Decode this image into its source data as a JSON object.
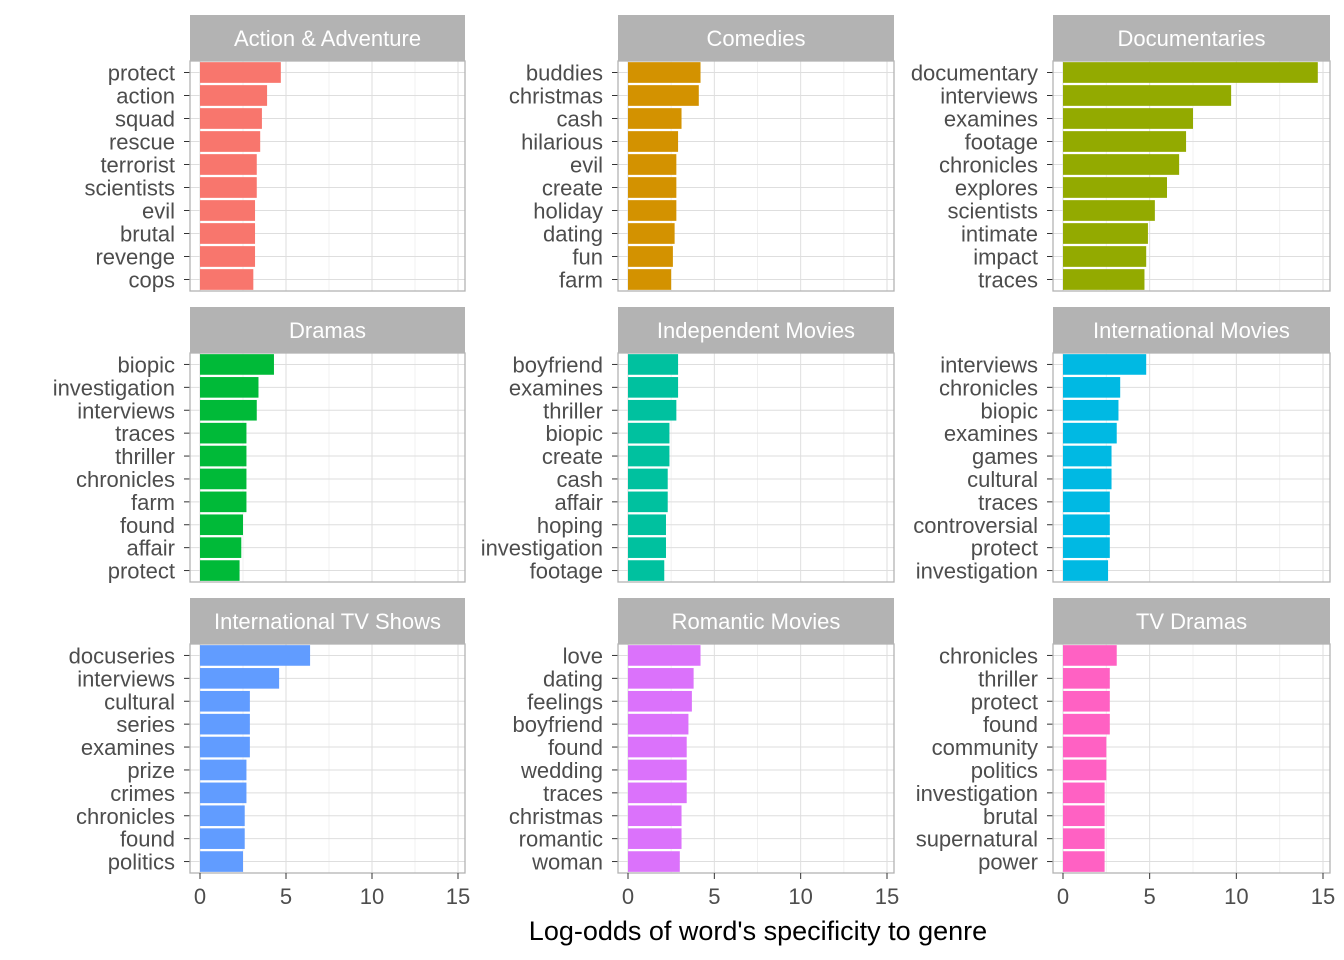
{
  "chart_data": {
    "type": "bar",
    "orientation": "horizontal",
    "xlabel": "Log-odds of word's specificity to genre",
    "xlim": [
      0,
      15
    ],
    "x_ticks": [
      0,
      5,
      10,
      15
    ],
    "grid": true,
    "legend": "none",
    "facets": [
      {
        "name": "Action & Adventure",
        "color": "#F8766D",
        "categories": [
          "protect",
          "action",
          "squad",
          "rescue",
          "terrorist",
          "scientists",
          "evil",
          "brutal",
          "revenge",
          "cops"
        ],
        "values": [
          4.7,
          3.9,
          3.6,
          3.5,
          3.3,
          3.3,
          3.2,
          3.2,
          3.2,
          3.1
        ]
      },
      {
        "name": "Comedies",
        "color": "#D39200",
        "categories": [
          "buddies",
          "christmas",
          "cash",
          "hilarious",
          "evil",
          "create",
          "holiday",
          "dating",
          "fun",
          "farm"
        ],
        "values": [
          4.2,
          4.1,
          3.1,
          2.9,
          2.8,
          2.8,
          2.8,
          2.7,
          2.6,
          2.5
        ]
      },
      {
        "name": "Documentaries",
        "color": "#93AA00",
        "categories": [
          "documentary",
          "interviews",
          "examines",
          "footage",
          "chronicles",
          "explores",
          "scientists",
          "intimate",
          "impact",
          "traces"
        ],
        "values": [
          14.7,
          9.7,
          7.5,
          7.1,
          6.7,
          6.0,
          5.3,
          4.9,
          4.8,
          4.7
        ]
      },
      {
        "name": "Dramas",
        "color": "#00BA38",
        "categories": [
          "biopic",
          "investigation",
          "interviews",
          "traces",
          "thriller",
          "chronicles",
          "farm",
          "found",
          "affair",
          "protect"
        ],
        "values": [
          4.3,
          3.4,
          3.3,
          2.7,
          2.7,
          2.7,
          2.7,
          2.5,
          2.4,
          2.3
        ]
      },
      {
        "name": "Independent Movies",
        "color": "#00C19F",
        "categories": [
          "boyfriend",
          "examines",
          "thriller",
          "biopic",
          "create",
          "cash",
          "affair",
          "hoping",
          "investigation",
          "footage"
        ],
        "values": [
          2.9,
          2.9,
          2.8,
          2.4,
          2.4,
          2.3,
          2.3,
          2.2,
          2.2,
          2.1
        ]
      },
      {
        "name": "International Movies",
        "color": "#00B9E3",
        "categories": [
          "interviews",
          "chronicles",
          "biopic",
          "examines",
          "games",
          "cultural",
          "traces",
          "controversial",
          "protect",
          "investigation"
        ],
        "values": [
          4.8,
          3.3,
          3.2,
          3.1,
          2.8,
          2.8,
          2.7,
          2.7,
          2.7,
          2.6
        ]
      },
      {
        "name": "International TV Shows",
        "color": "#619CFF",
        "categories": [
          "docuseries",
          "interviews",
          "cultural",
          "series",
          "examines",
          "prize",
          "crimes",
          "chronicles",
          "found",
          "politics"
        ],
        "values": [
          6.4,
          4.6,
          2.9,
          2.9,
          2.9,
          2.7,
          2.7,
          2.6,
          2.6,
          2.5
        ]
      },
      {
        "name": "Romantic Movies",
        "color": "#DB72FB",
        "categories": [
          "love",
          "dating",
          "feelings",
          "boyfriend",
          "found",
          "wedding",
          "traces",
          "christmas",
          "romantic",
          "woman"
        ],
        "values": [
          4.2,
          3.8,
          3.7,
          3.5,
          3.4,
          3.4,
          3.4,
          3.1,
          3.1,
          3.0
        ]
      },
      {
        "name": "TV Dramas",
        "color": "#FF61C3",
        "categories": [
          "chronicles",
          "thriller",
          "protect",
          "found",
          "community",
          "politics",
          "investigation",
          "brutal",
          "supernatural",
          "power"
        ],
        "values": [
          3.1,
          2.7,
          2.7,
          2.7,
          2.5,
          2.5,
          2.4,
          2.4,
          2.4,
          2.4
        ]
      }
    ]
  }
}
